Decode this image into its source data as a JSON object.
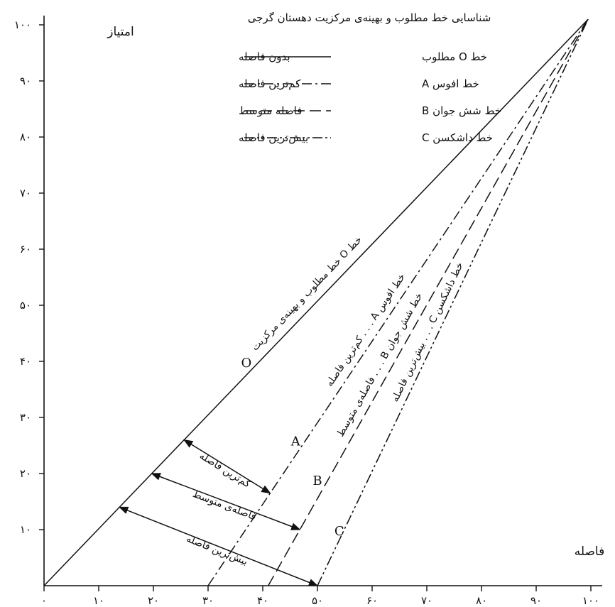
{
  "chart_data": {
    "type": "line",
    "title": "شناسایی خط مطلوب و بهینه‌ی مرکزیت دهستان گرجی",
    "xlabel": "فاصله",
    "ylabel": "امتیاز",
    "xlim": [
      0,
      100
    ],
    "ylim": [
      0,
      100
    ],
    "x_ticks": [
      0,
      10,
      20,
      30,
      40,
      50,
      60,
      70,
      80,
      90,
      100
    ],
    "x_tick_labels": [
      "۰",
      "۱۰",
      "۲۰",
      "۳۰",
      "۴۰",
      "۵۰",
      "۶۰",
      "۷۰",
      "۸۰",
      "۹۰",
      "۱۰۰"
    ],
    "y_ticks": [
      10,
      20,
      30,
      40,
      50,
      60,
      70,
      80,
      90,
      100
    ],
    "y_tick_labels": [
      "۱۰",
      "۲۰",
      "۳۰",
      "۴۰",
      "۵۰",
      "۶۰",
      "۷۰",
      "۸۰",
      "۹۰",
      "۱۰۰"
    ],
    "grid": false,
    "legend_position": "top-center",
    "series": [
      {
        "name": "خط O مطلوب",
        "letter": "O",
        "style": "solid",
        "x": [
          0,
          99.5
        ],
        "y": [
          0,
          101
        ]
      },
      {
        "name": "خط افوس A",
        "letter": "A",
        "style": "dash-dot",
        "x": [
          30,
          99.5
        ],
        "y": [
          0,
          101
        ]
      },
      {
        "name": "خط شش جوان B",
        "letter": "B",
        "style": "dashed",
        "x": [
          41,
          99.5
        ],
        "y": [
          0,
          101
        ]
      },
      {
        "name": "خط داشکسن C",
        "letter": "C",
        "style": "dash-dot-dot",
        "x": [
          50,
          99.5
        ],
        "y": [
          0,
          101
        ]
      }
    ],
    "legend": [
      {
        "line_label": "خط O مطلوب",
        "meaning": "بدون فاصله",
        "style": "solid"
      },
      {
        "line_label": "خط افوس A",
        "meaning": "کم‌ترین فاصله",
        "style": "dash-dot"
      },
      {
        "line_label": "خط شش جوان B",
        "meaning": "فاصله متوسط",
        "style": "dashed"
      },
      {
        "line_label": "خط داشکسن C",
        "meaning": "بیش‌ترین فاصله",
        "style": "dash-dot-dot"
      }
    ],
    "line_annotations": [
      {
        "series": "O",
        "text": "خط O خط مطلوب و بهینه‌ی مرکزیت"
      },
      {
        "series": "A",
        "text": "خط افوس A . . . کم‌ترین فاصله"
      },
      {
        "series": "C",
        "text": "خط داشکسن C . . . بیش‌ترین فاصله"
      },
      {
        "series": "B",
        "text": "خط شش جوان B . . . فاصله‌ی متوسط"
      }
    ],
    "point_labels": [
      {
        "text": "O",
        "x": 37,
        "y": 39
      },
      {
        "text": "A",
        "x": 46,
        "y": 25
      },
      {
        "text": "B",
        "x": 50,
        "y": 18
      },
      {
        "text": "C",
        "x": 54,
        "y": 9
      }
    ],
    "distance_arrows": [
      {
        "text": "کم‌ترین فاصله",
        "from_series": "O",
        "to_series": "A",
        "y_start": 26,
        "y_end": 16.5
      },
      {
        "text": "فاصله‌ی متوسط",
        "from_series": "O",
        "to_series": "B",
        "y_start": 20,
        "y_end": 10
      },
      {
        "text": "بیش‌ترین فاصله",
        "from_series": "O",
        "to_series": "C",
        "y_start": 14,
        "y_end": 0
      }
    ]
  }
}
